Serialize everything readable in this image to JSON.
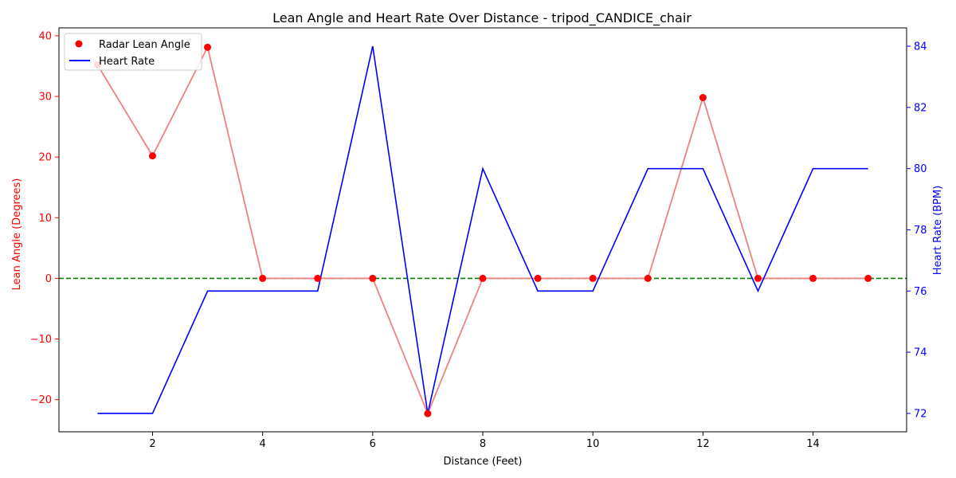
{
  "chart_data": {
    "type": "line",
    "title": "Lean Angle and Heart Rate Over Distance - tripod_CANDICE_chair",
    "xlabel": "Distance (Feet)",
    "ylabel_left": "Lean Angle (Degrees)",
    "ylabel_right": "Heart Rate (BPM)",
    "xlim": [
      0.3,
      15.7
    ],
    "ylim_left": [
      -25.3,
      41.3
    ],
    "ylim_right": [
      71.4,
      84.6
    ],
    "x_ticks": [
      2,
      4,
      6,
      8,
      10,
      12,
      14
    ],
    "y_ticks_left": [
      -20,
      -10,
      0,
      10,
      20,
      30,
      40
    ],
    "y_ticks_right": [
      72,
      74,
      76,
      78,
      80,
      82,
      84
    ],
    "x": [
      1,
      2,
      3,
      4,
      5,
      6,
      7,
      8,
      9,
      10,
      11,
      12,
      13,
      14,
      15
    ],
    "series": [
      {
        "name": "Radar Lean Angle",
        "axis": "left",
        "values": [
          35.2,
          20.2,
          38.1,
          0,
          0,
          0,
          -22.3,
          0,
          0,
          0,
          0,
          29.8,
          0,
          0,
          0
        ],
        "color": "#ff0000",
        "line_color": "#f08080"
      },
      {
        "name": "Heart Rate",
        "axis": "right",
        "values": [
          72,
          72,
          76,
          76,
          76,
          84,
          72,
          80,
          76,
          76,
          80,
          80,
          76,
          80,
          80
        ],
        "color": "#0000ff"
      }
    ],
    "reference_line": {
      "value": 0,
      "axis": "left",
      "color": "#008000",
      "style": "dashed"
    },
    "legend_position": "upper-left",
    "left_axis_color": "#ff0000",
    "right_axis_color": "#0000ff"
  }
}
